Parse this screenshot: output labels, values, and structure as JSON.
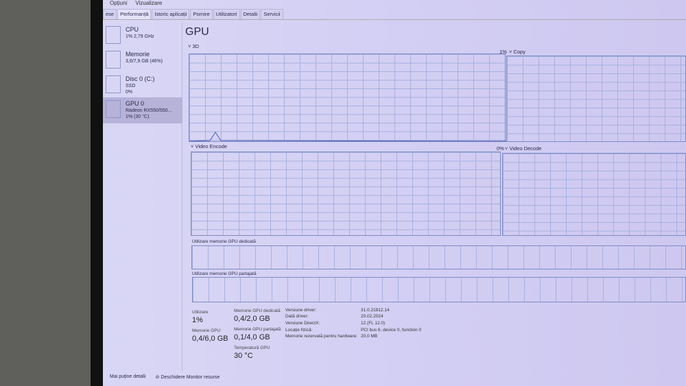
{
  "menu": [
    "Opțiuni",
    "Vizualizare"
  ],
  "tabs": [
    "ese",
    "Performanță",
    "Istoric aplicații",
    "Pornire",
    "Utilizatori",
    "Detalii",
    "Servicii"
  ],
  "sidebar": [
    {
      "name": "CPU",
      "line1": "1% 2,79 GHz",
      "line2": ""
    },
    {
      "name": "Memorie",
      "line1": "3,6/7,9 GB (46%)",
      "line2": ""
    },
    {
      "name": "Disc 0 (C:)",
      "line1": "SSD",
      "line2": "0%"
    },
    {
      "name": "GPU 0",
      "line1": "Radeon RX550/550...",
      "line2": "1% (30 °C)"
    }
  ],
  "main": {
    "title": "GPU",
    "graphs": {
      "3d": "3D",
      "3d_pct": "1%",
      "copy": "Copy",
      "encode": "Video Encode",
      "encode_pct": "0%",
      "decode": "Video Decode"
    },
    "dedicated_label": "Utilizare memorie GPU dedicată",
    "shared_label": "Utilizare memorie GPU partajată",
    "stats": {
      "util_label": "Utilizare",
      "util": "1%",
      "gpumem_label": "Memorie GPU",
      "gpumem": "0,4/6,0 GB",
      "ded_label": "Memorie GPU dedicată",
      "ded": "0,4/2,0 GB",
      "shared_label": "Memorie GPU partajată",
      "shared": "0,1/4,0 GB",
      "temp_label": "Temperatură GPU",
      "temp": "30 °C"
    },
    "info": [
      {
        "k": "Versiune driver:",
        "v": "31.0.21912.14"
      },
      {
        "k": "Dată driver:",
        "v": "20.02.2024"
      },
      {
        "k": "Versiune DirectX:",
        "v": "12 (FL 12.0)"
      },
      {
        "k": "Locație fizică:",
        "v": "PCI bus 6, device 0, function 0"
      },
      {
        "k": "Memorie rezervată pentru hardware:",
        "v": "20,0 MB"
      }
    ]
  },
  "footer": {
    "less": "Mai puține detalii",
    "monitor": "Deschidere Monitor resurse"
  }
}
